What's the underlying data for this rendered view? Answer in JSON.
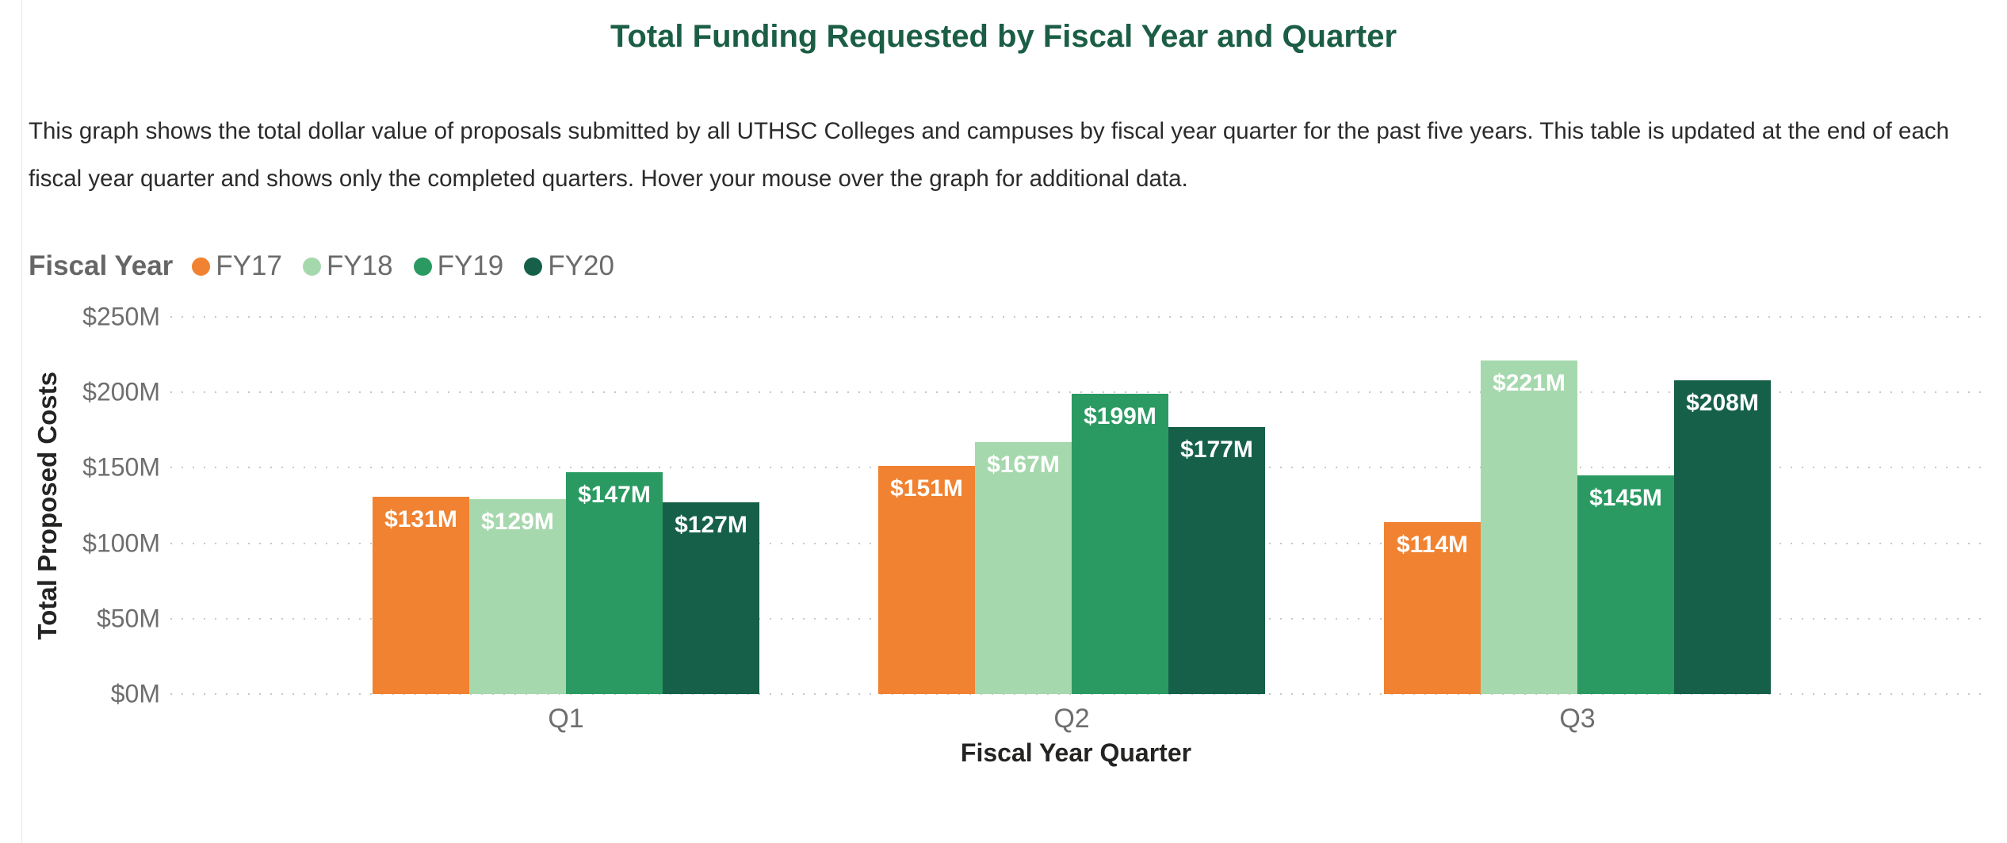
{
  "page": {
    "title": "Total Funding Requested by Fiscal Year and Quarter",
    "description": "This graph shows the total dollar value of proposals submitted by all UTHSC Colleges and campuses by fiscal year quarter for the past five years.  This table is updated at the end of each fiscal year quarter and shows only the completed quarters. Hover your mouse over the graph for additional data."
  },
  "colors": {
    "title": "#1b5e45",
    "body_text": "#2b2b2b",
    "axis_tick": "#6e6e6e",
    "axis_title": "#252423",
    "gridline": "#c9c7c5",
    "bar_label": "#ffffff"
  },
  "legend": {
    "title": "Fiscal Year",
    "items": [
      {
        "label": "FY17",
        "color": "#f08231"
      },
      {
        "label": "FY18",
        "color": "#a6d8ad"
      },
      {
        "label": "FY19",
        "color": "#2a9a62"
      },
      {
        "label": "FY20",
        "color": "#166049"
      }
    ]
  },
  "chart_data": {
    "type": "bar",
    "title": "Total Funding Requested by Fiscal Year and Quarter",
    "categories": [
      "Q1",
      "Q2",
      "Q3"
    ],
    "series": [
      {
        "name": "FY17",
        "color": "#f08231",
        "values": [
          131,
          151,
          114
        ],
        "labels": [
          "$131M",
          "$151M",
          "$114M"
        ]
      },
      {
        "name": "FY18",
        "color": "#a6d8ad",
        "values": [
          129,
          167,
          221
        ],
        "labels": [
          "$129M",
          "$167M",
          "$221M"
        ]
      },
      {
        "name": "FY19",
        "color": "#2a9a62",
        "values": [
          147,
          199,
          145
        ],
        "labels": [
          "$147M",
          "$199M",
          "$145M"
        ]
      },
      {
        "name": "FY20",
        "color": "#166049",
        "values": [
          127,
          177,
          208
        ],
        "labels": [
          "$127M",
          "$177M",
          "$208M"
        ]
      }
    ],
    "xlabel": "Fiscal Year Quarter",
    "ylabel": "Total Proposed Costs",
    "ylim": [
      0,
      250
    ],
    "y_ticks": [
      "$0M",
      "$50M",
      "$100M",
      "$150M",
      "$200M",
      "$250M"
    ],
    "grid": "dotted-horizontal",
    "legend_position": "top-left",
    "value_labels": "inside-top, white bold"
  }
}
